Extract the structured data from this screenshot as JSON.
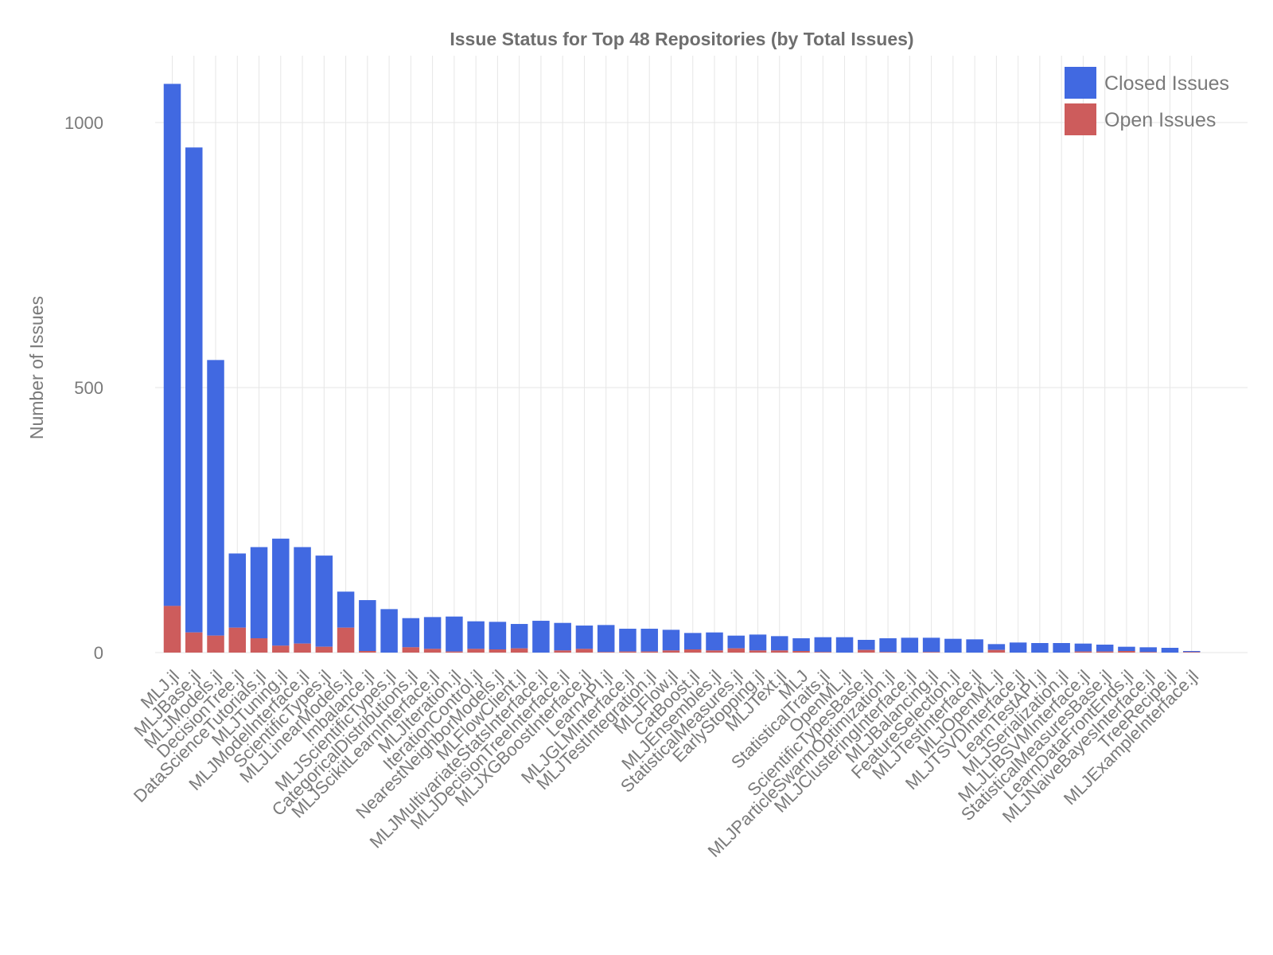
{
  "chart_data": {
    "type": "bar",
    "stacked": true,
    "title": "Issue Status for Top 48 Repositories (by Total Issues)",
    "xlabel": "",
    "ylabel": "Number of Issues",
    "ylim": [
      0,
      1100
    ],
    "yticks": [
      0,
      500,
      1000
    ],
    "grid": true,
    "legend_position": "top-right",
    "categories": [
      "MLJ.jl",
      "MLJBase.jl",
      "MLJModels.jl",
      "DecisionTree.jl",
      "DataScienceTutorials.jl",
      "MLJTuning.jl",
      "MLJModelInterface.jl",
      "ScientificTypes.jl",
      "MLJLinearModels.jl",
      "Imbalance.jl",
      "MLJScientificTypes.jl",
      "CategoricalDistributions.jl",
      "MLJScikitLearnInterface.jl",
      "MLJIteration.jl",
      "IterationControl.jl",
      "NearestNeighborModels.jl",
      "MLFlowClient.jl",
      "MLJMultivariateStatsInterface.jl",
      "MLJDecisionTreeInterface.jl",
      "MLJXGBoostInterface.jl",
      "LearnAPI.jl",
      "MLJGLMInterface.jl",
      "MLJTestIntegration.jl",
      "MLJFlow.jl",
      "CatBoost.jl",
      "MLJEnsembles.jl",
      "StatisticalMeasures.jl",
      "EarlyStopping.jl",
      "MLJText.jl",
      "MLJ",
      "StatisticalTraits.jl",
      "OpenML.jl",
      "ScientificTypesBase.jl",
      "MLJParticleSwarmOptimization.jl",
      "MLJClusteringInterface.jl",
      "MLJBalancing.jl",
      "FeatureSelection.jl",
      "MLJTestInterface.jl",
      "MLJOpenML.jl",
      "MLJTSVDInterface.jl",
      "LearnTestAPI.jl",
      "MLJSerialization.jl",
      "MLJLIBSVMInterface.jl",
      "StatisticalMeasuresBase.jl",
      "LearnDataFrontEnds.jl",
      "MLJNaiveBayesInterface.jl",
      "TreeRecipe.jl",
      "MLJExampleInterface.jl"
    ],
    "series": [
      {
        "name": "Closed Issues",
        "color": "#4169E1",
        "values": [
          985,
          915,
          520,
          140,
          172,
          202,
          182,
          172,
          68,
          96,
          82,
          55,
          60,
          66,
          52,
          52,
          46,
          60,
          52,
          44,
          51,
          43,
          43,
          39,
          31,
          34,
          24,
          30,
          27,
          24,
          28,
          29,
          19,
          26,
          28,
          27,
          26,
          25,
          11,
          19,
          18,
          18,
          15,
          13,
          8,
          9,
          9,
          2
        ]
      },
      {
        "name": "Open Issues",
        "color": "#CD5C5C",
        "values": [
          88,
          38,
          32,
          47,
          27,
          13,
          17,
          11,
          47,
          3,
          0,
          10,
          7,
          2,
          7,
          6,
          8,
          0,
          4,
          7,
          1,
          2,
          2,
          4,
          6,
          4,
          8,
          4,
          4,
          3,
          1,
          0,
          5,
          1,
          0,
          1,
          0,
          0,
          5,
          0,
          0,
          0,
          2,
          2,
          3,
          1,
          0,
          1
        ]
      }
    ]
  }
}
